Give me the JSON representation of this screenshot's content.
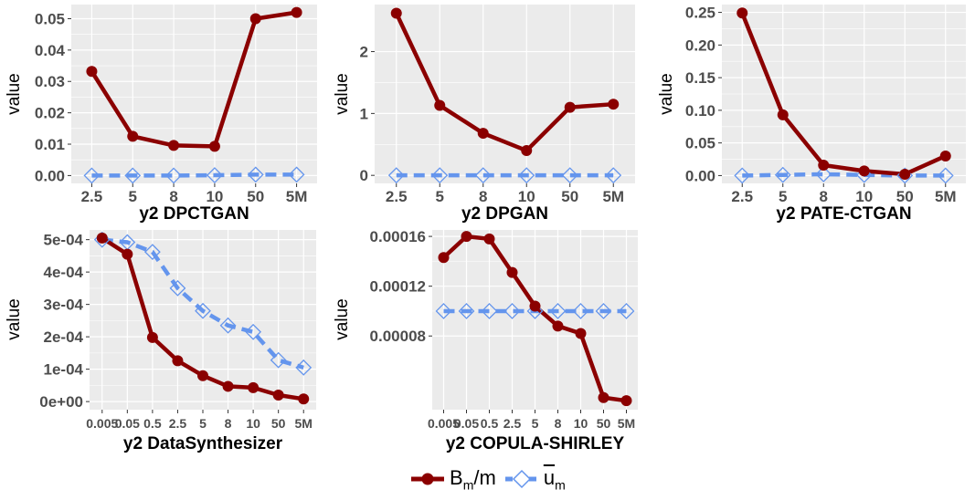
{
  "colors": {
    "bm": "#8b0000",
    "um": "#6495ed",
    "panel": "#ebebeb",
    "grid": "#ffffff",
    "text": "#4d4d4d"
  },
  "legend": {
    "bm": {
      "main": "B",
      "sub": "m",
      "slash": "/",
      "tail": "m"
    },
    "um": {
      "main": "u",
      "sub": "m"
    }
  },
  "chart_data": [
    {
      "type": "line",
      "title": "y2 DPCTGAN",
      "ylabel": "value",
      "categories": [
        "2.5",
        "5",
        "8",
        "10",
        "50",
        "5M"
      ],
      "ylim": [
        -0.0025,
        0.0545
      ],
      "yticks": [
        0.0,
        0.01,
        0.02,
        0.03,
        0.04,
        0.05
      ],
      "ytick_labels": [
        "0.00",
        "0.01",
        "0.02",
        "0.03",
        "0.04",
        "0.05"
      ],
      "series": [
        {
          "name": "Bm/m",
          "values": [
            0.0332,
            0.0125,
            0.0096,
            0.0093,
            0.05,
            0.052
          ]
        },
        {
          "name": "um",
          "values": [
            0.0,
            0.0,
            0.0,
            0.0001,
            0.0003,
            0.0003
          ]
        }
      ]
    },
    {
      "type": "line",
      "title": "y2 DPGAN",
      "ylabel": "value",
      "categories": [
        "2.5",
        "5",
        "8",
        "10",
        "50",
        "5M"
      ],
      "ylim": [
        -0.13,
        2.76
      ],
      "yticks": [
        0,
        1,
        2
      ],
      "ytick_labels": [
        "0",
        "1",
        "2"
      ],
      "series": [
        {
          "name": "Bm/m",
          "values": [
            2.62,
            1.13,
            0.68,
            0.4,
            1.1,
            1.15
          ]
        },
        {
          "name": "um",
          "values": [
            0,
            0,
            0,
            0,
            0,
            0
          ]
        }
      ]
    },
    {
      "type": "line",
      "title": "y2 PATE-CTGAN",
      "ylabel": "value",
      "categories": [
        "2.5",
        "5",
        "8",
        "10",
        "50",
        "5M"
      ],
      "ylim": [
        -0.012,
        0.262
      ],
      "yticks": [
        0.0,
        0.05,
        0.1,
        0.15,
        0.2,
        0.25
      ],
      "ytick_labels": [
        "0.00",
        "0.05",
        "0.10",
        "0.15",
        "0.20",
        "0.25"
      ],
      "series": [
        {
          "name": "Bm/m",
          "values": [
            0.249,
            0.093,
            0.016,
            0.007,
            0.002,
            0.03
          ]
        },
        {
          "name": "um",
          "values": [
            0.0,
            0.001,
            0.002,
            0.001,
            0.0,
            0.0
          ]
        }
      ]
    },
    {
      "type": "line",
      "title": "y2 DataSynthesizer",
      "ylabel": "value",
      "categories": [
        "0.005",
        "0.05",
        "0.5",
        "2.5",
        "5",
        "8",
        "10",
        "50",
        "5M"
      ],
      "ylim": [
        -2.5e-05,
        0.00053
      ],
      "yticks": [
        0,
        0.0001,
        0.0002,
        0.0003,
        0.0004,
        0.0005
      ],
      "ytick_labels": [
        "0e+00",
        "1e-04",
        "2e-04",
        "3e-04",
        "4e-04",
        "5e-04"
      ],
      "series": [
        {
          "name": "Bm/m",
          "values": [
            0.000505,
            0.000455,
            0.000198,
            0.000126,
            8e-05,
            4.7e-05,
            4.3e-05,
            2e-05,
            8e-06
          ]
        },
        {
          "name": "um",
          "values": [
            0.0005,
            0.000492,
            0.000462,
            0.00035,
            0.00028,
            0.000235,
            0.000215,
            0.000128,
            0.000105
          ]
        }
      ]
    },
    {
      "type": "line",
      "title": "y2 COPULA-SHIRLEY",
      "ylabel": "value",
      "categories": [
        "0.005",
        "0.05",
        "0.5",
        "2.5",
        "5",
        "8",
        "10",
        "50",
        "5M"
      ],
      "ylim": [
        2.08e-05,
        0.0001652
      ],
      "yticks": [
        8e-05,
        0.00012,
        0.00016
      ],
      "ytick_labels": [
        "0.00008",
        "0.00012",
        "0.00016"
      ],
      "series": [
        {
          "name": "Bm/m",
          "values": [
            0.000143,
            0.00016,
            0.000158,
            0.000131,
            0.000104,
            8.8e-05,
            8.2e-05,
            3.05e-05,
            2.8e-05
          ]
        },
        {
          "name": "um",
          "values": [
            0.0001,
            0.0001,
            0.0001,
            0.0001,
            0.0001,
            0.0001,
            0.0001,
            0.0001,
            0.0001
          ]
        }
      ]
    }
  ]
}
